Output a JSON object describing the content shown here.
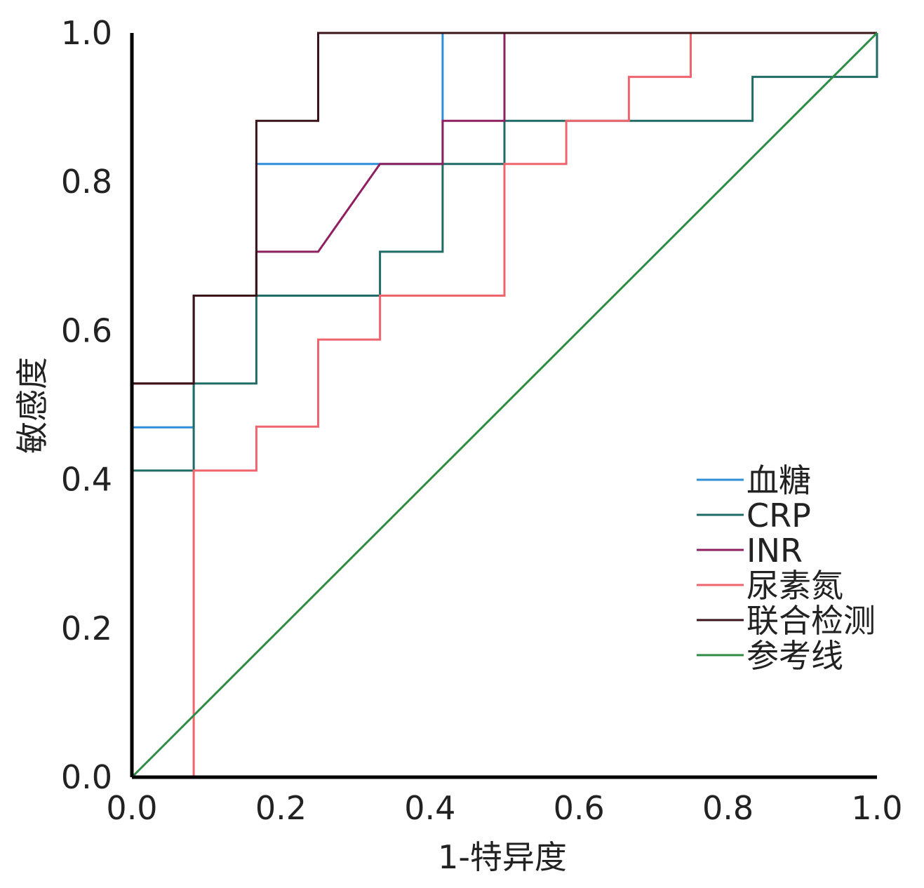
{
  "chart_data": {
    "type": "line",
    "title": "",
    "xlabel": "1-特异度",
    "ylabel": "敏感度",
    "xlim": [
      0,
      1
    ],
    "ylim": [
      0,
      1
    ],
    "x_ticks": [
      "0.0",
      "0.2",
      "0.4",
      "0.6",
      "0.8",
      "1.0"
    ],
    "y_ticks": [
      "0.0",
      "0.2",
      "0.4",
      "0.6",
      "0.8",
      "1.0"
    ],
    "grid": false,
    "legend_position": "bottom-right",
    "series": [
      {
        "name": "血糖",
        "color": "#2e8fd8",
        "points": [
          [
            0,
            0
          ],
          [
            0,
            0.47
          ],
          [
            0.083,
            0.47
          ],
          [
            0.083,
            0.647
          ],
          [
            0.167,
            0.647
          ],
          [
            0.167,
            0.824
          ],
          [
            0.417,
            0.824
          ],
          [
            0.417,
            1.0
          ],
          [
            1.0,
            1.0
          ]
        ]
      },
      {
        "name": "CRP",
        "color": "#1f6b66",
        "points": [
          [
            0,
            0
          ],
          [
            0,
            0.412
          ],
          [
            0.083,
            0.412
          ],
          [
            0.083,
            0.529
          ],
          [
            0.167,
            0.529
          ],
          [
            0.167,
            0.647
          ],
          [
            0.333,
            0.647
          ],
          [
            0.333,
            0.706
          ],
          [
            0.417,
            0.706
          ],
          [
            0.417,
            0.824
          ],
          [
            0.5,
            0.824
          ],
          [
            0.5,
            0.882
          ],
          [
            0.833,
            0.882
          ],
          [
            0.833,
            0.941
          ],
          [
            1.0,
            0.941
          ],
          [
            1.0,
            1.0
          ]
        ]
      },
      {
        "name": "INR",
        "color": "#8e2060",
        "points": [
          [
            0,
            0
          ],
          [
            0,
            0.529
          ],
          [
            0.083,
            0.529
          ],
          [
            0.083,
            0.647
          ],
          [
            0.167,
            0.647
          ],
          [
            0.167,
            0.706
          ],
          [
            0.25,
            0.706
          ],
          [
            0.333,
            0.824
          ],
          [
            0.417,
            0.824
          ],
          [
            0.417,
            0.882
          ],
          [
            0.5,
            0.882
          ],
          [
            0.5,
            1.0
          ],
          [
            1.0,
            1.0
          ]
        ]
      },
      {
        "name": "尿素氮",
        "color": "#f0646e",
        "points": [
          [
            0,
            0
          ],
          [
            0.083,
            0
          ],
          [
            0.083,
            0.412
          ],
          [
            0.167,
            0.412
          ],
          [
            0.167,
            0.471
          ],
          [
            0.25,
            0.471
          ],
          [
            0.25,
            0.588
          ],
          [
            0.333,
            0.588
          ],
          [
            0.333,
            0.647
          ],
          [
            0.5,
            0.647
          ],
          [
            0.5,
            0.824
          ],
          [
            0.583,
            0.824
          ],
          [
            0.583,
            0.882
          ],
          [
            0.667,
            0.882
          ],
          [
            0.667,
            0.941
          ],
          [
            0.75,
            0.941
          ],
          [
            0.75,
            1.0
          ],
          [
            1.0,
            1.0
          ]
        ]
      },
      {
        "name": "联合检测",
        "color": "#3a1418",
        "points": [
          [
            0,
            0
          ],
          [
            0,
            0.529
          ],
          [
            0.083,
            0.529
          ],
          [
            0.083,
            0.647
          ],
          [
            0.167,
            0.647
          ],
          [
            0.167,
            0.882
          ],
          [
            0.25,
            0.882
          ],
          [
            0.25,
            1.0
          ],
          [
            1.0,
            1.0
          ]
        ]
      },
      {
        "name": "参考线",
        "color": "#2e8b44",
        "points": [
          [
            0,
            0
          ],
          [
            1,
            1
          ]
        ]
      }
    ],
    "highlights": [
      {
        "color": "#e8171f",
        "points": [
          [
            0,
            0
          ],
          [
            0.083,
            0
          ]
        ]
      },
      {
        "color": "#e8171f",
        "points": [
          [
            0,
            0.47
          ],
          [
            0,
            0.529
          ]
        ]
      }
    ]
  }
}
